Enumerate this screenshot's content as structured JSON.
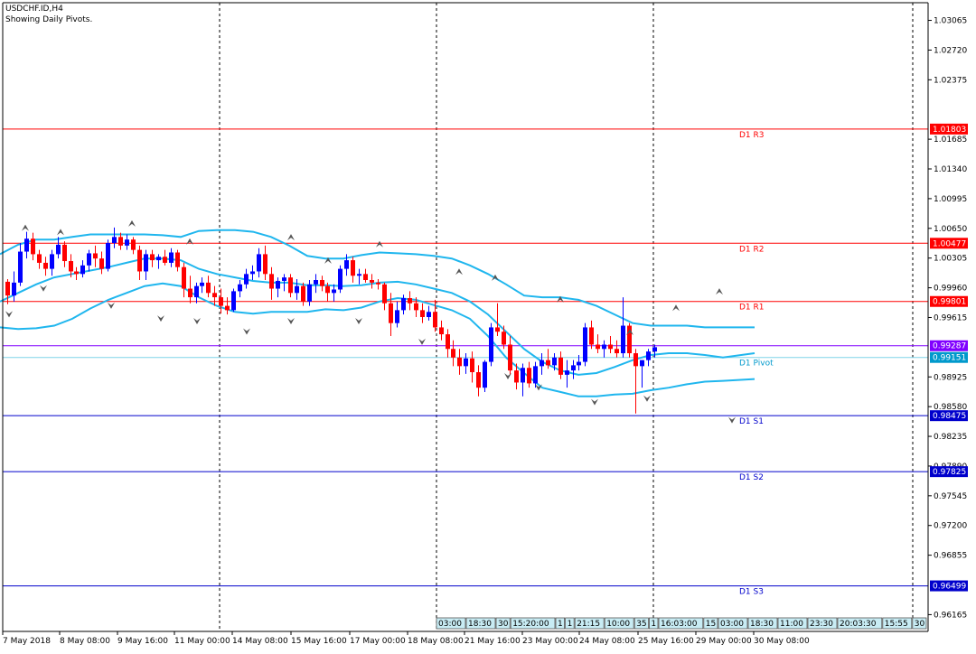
{
  "header": {
    "symbol": "USDCHF.ID,H4",
    "subtitle": "Showing Daily Pivots."
  },
  "colors": {
    "background": "#ffffff",
    "axis": "#000000",
    "separator": "#000000",
    "resistance": "#ff0000",
    "support": "#0000cc",
    "pivot": "#7fd4e8",
    "pivot_label": "#0099cc",
    "price_line": "#8000ff",
    "bollinger": "#1fb6ee",
    "bull_candle": "#0000ff",
    "bear_candle": "#ff0000",
    "tag_border": "#555555",
    "tag_fill": "#c8ecf4"
  },
  "chart_data": {
    "type": "candlestick",
    "symbol": "USDCHF.ID",
    "timeframe": "H4",
    "ylim": [
      0.9597,
      1.0327
    ],
    "y_ticks": [
      "1.03065",
      "1.02720",
      "1.02375",
      "1.01685",
      "1.01340",
      "1.00995",
      "1.00650",
      "1.00305",
      "0.99960",
      "0.99615",
      "0.98925",
      "0.98580",
      "0.98235",
      "0.97890",
      "0.97545",
      "0.97200",
      "0.96855",
      "0.96165"
    ],
    "x_ticks": [
      "7 May 2018",
      "8 May 08:00",
      "9 May 16:00",
      "11 May 00:00",
      "14 May 08:00",
      "15 May 16:00",
      "17 May 00:00",
      "18 May 08:00",
      "21 May 16:00",
      "23 May 00:00",
      "24 May 08:00",
      "25 May 16:00",
      "29 May 00:00",
      "30 May 08:00"
    ],
    "pivot_levels": [
      {
        "name": "D1 R3",
        "value": "1.01803",
        "kind": "resistance"
      },
      {
        "name": "D1 R2",
        "value": "1.00477",
        "kind": "resistance"
      },
      {
        "name": "D1 R1",
        "value": "0.99801",
        "kind": "resistance"
      },
      {
        "name": "D1 Pivot",
        "value": "0.99151",
        "kind": "pivot"
      },
      {
        "name": "D1 S1",
        "value": "0.98475",
        "kind": "support"
      },
      {
        "name": "D1 S2",
        "value": "0.97825",
        "kind": "support"
      },
      {
        "name": "D1 S3",
        "value": "0.96499",
        "kind": "support"
      }
    ],
    "current_price": "0.99287",
    "time_tags": [
      "03:00",
      "18:30",
      "30",
      "15:20:00",
      "1",
      "1",
      "21:15",
      "10:00",
      "35",
      "1",
      "16:03:00",
      "15",
      "03:00",
      "18:30",
      "11:00",
      "23:30",
      "20:03:30",
      "15:55",
      "30"
    ],
    "candles": [
      [
        1.0003,
        1.0006,
        0.9977,
        0.9987
      ],
      [
        0.9987,
        1.0015,
        0.998,
        1.0002
      ],
      [
        1.0002,
        1.0048,
        0.9998,
        1.0038
      ],
      [
        1.0038,
        1.0061,
        1.003,
        1.0053
      ],
      [
        1.0053,
        1.006,
        1.0028,
        1.0035
      ],
      [
        1.0035,
        1.004,
        1.0018,
        1.0025
      ],
      [
        1.0025,
        1.0032,
        1.001,
        1.0018
      ],
      [
        1.0018,
        1.004,
        1.001,
        1.0035
      ],
      [
        1.0035,
        1.0055,
        1.003,
        1.0046
      ],
      [
        1.0046,
        1.005,
        1.002,
        1.0027
      ],
      [
        1.0027,
        1.0035,
        1.0008,
        1.0015
      ],
      [
        1.0015,
        1.002,
        1.0005,
        1.0012
      ],
      [
        1.0012,
        1.0028,
        1.0008,
        1.0022
      ],
      [
        1.0022,
        1.004,
        1.0015,
        1.0036
      ],
      [
        1.0036,
        1.0045,
        1.002,
        1.003
      ],
      [
        1.003,
        1.0038,
        1.0012,
        1.0018
      ],
      [
        1.0018,
        1.0052,
        1.0015,
        1.0048
      ],
      [
        1.0048,
        1.0066,
        1.0042,
        1.0055
      ],
      [
        1.0055,
        1.006,
        1.004,
        1.0045
      ],
      [
        1.0045,
        1.0058,
        1.004,
        1.0052
      ],
      [
        1.0052,
        1.0055,
        1.0035,
        1.004
      ],
      [
        1.004,
        1.0045,
        1.0005,
        1.0015
      ],
      [
        1.0015,
        1.004,
        1.0005,
        1.0035
      ],
      [
        1.0035,
        1.004,
        1.002,
        1.0028
      ],
      [
        1.0028,
        1.0035,
        1.0018,
        1.0032
      ],
      [
        1.0032,
        1.004,
        1.0022,
        1.0025
      ],
      [
        1.0025,
        1.0042,
        1.002,
        1.0037
      ],
      [
        1.0037,
        1.004,
        1.0015,
        1.002
      ],
      [
        1.002,
        1.0025,
        0.9985,
        0.9995
      ],
      [
        0.9995,
        1.001,
        0.9978,
        0.9985
      ],
      [
        0.9985,
        1.0002,
        0.9978,
        0.9998
      ],
      [
        0.9998,
        1.0008,
        0.999,
        1.0002
      ],
      [
        1.0002,
        1.001,
        0.9985,
        0.999
      ],
      [
        0.999,
        0.9998,
        0.9975,
        0.9985
      ],
      [
        0.9985,
        0.9995,
        0.9966,
        0.9975
      ],
      [
        0.9975,
        0.9985,
        0.9965,
        0.997
      ],
      [
        0.997,
        0.9995,
        0.9968,
        0.9992
      ],
      [
        0.9992,
        1.0005,
        0.9985,
        1.0
      ],
      [
        1.0,
        1.0018,
        0.9995,
        1.0012
      ],
      [
        1.0012,
        1.0022,
        1.0005,
        1.0015
      ],
      [
        1.0015,
        1.0042,
        1.0008,
        1.0035
      ],
      [
        1.0035,
        1.0045,
        1.0005,
        1.0012
      ],
      [
        1.0012,
        1.002,
        0.9982,
        0.9995
      ],
      [
        0.9995,
        1.0008,
        0.9985,
        1.0004
      ],
      [
        1.0004,
        1.0012,
        0.9992,
        1.0008
      ],
      [
        1.0008,
        1.0012,
        0.9985,
        0.999
      ],
      [
        0.999,
        1.0006,
        0.9982,
        0.9998
      ],
      [
        0.9998,
        1.0002,
        0.9975,
        0.998
      ],
      [
        0.998,
        1.0005,
        0.9975,
        1.0
      ],
      [
        1.0,
        1.0012,
        0.999,
        1.0005
      ],
      [
        1.0005,
        1.001,
        0.9992,
        0.9998
      ],
      [
        0.9998,
        1.0002,
        0.998,
        0.999
      ],
      [
        0.999,
        1.0,
        0.998,
        0.9994
      ],
      [
        0.9994,
        1.0022,
        0.999,
        1.0018
      ],
      [
        1.0018,
        1.0035,
        1.001,
        1.0028
      ],
      [
        1.0028,
        1.0032,
        1.0002,
        1.001
      ],
      [
        1.001,
        1.0018,
        1.0,
        1.0012
      ],
      [
        1.0012,
        1.0018,
        1.0002,
        1.0005
      ],
      [
        1.0005,
        1.0012,
        0.9995,
        1.0002
      ],
      [
        1.0002,
        1.0006,
        0.9994,
        1.0
      ],
      [
        1.0,
        1.0002,
        0.997,
        0.9978
      ],
      [
        0.9978,
        0.999,
        0.994,
        0.9955
      ],
      [
        0.9955,
        0.998,
        0.995,
        0.997
      ],
      [
        0.997,
        0.9988,
        0.9965,
        0.9984
      ],
      [
        0.9984,
        0.9992,
        0.997,
        0.9978
      ],
      [
        0.9978,
        0.9985,
        0.9962,
        0.997
      ],
      [
        0.997,
        0.9978,
        0.9955,
        0.9962
      ],
      [
        0.9962,
        0.9975,
        0.9958,
        0.9968
      ],
      [
        0.9968,
        0.9982,
        0.9945,
        0.995
      ],
      [
        0.995,
        0.9958,
        0.9935,
        0.9942
      ],
      [
        0.9942,
        0.9948,
        0.9915,
        0.9925
      ],
      [
        0.9925,
        0.9935,
        0.9905,
        0.9915
      ],
      [
        0.9915,
        0.9925,
        0.9895,
        0.9905
      ],
      [
        0.9905,
        0.992,
        0.9896,
        0.9914
      ],
      [
        0.9914,
        0.9922,
        0.9886,
        0.9898
      ],
      [
        0.9898,
        0.9906,
        0.987,
        0.988
      ],
      [
        0.988,
        0.9912,
        0.9875,
        0.991
      ],
      [
        0.991,
        0.9955,
        0.9905,
        0.995
      ],
      [
        0.995,
        0.9978,
        0.994,
        0.9945
      ],
      [
        0.9945,
        0.9952,
        0.9925,
        0.993
      ],
      [
        0.993,
        0.994,
        0.9895,
        0.99
      ],
      [
        0.99,
        0.9908,
        0.9878,
        0.9886
      ],
      [
        0.9886,
        0.9908,
        0.987,
        0.9903
      ],
      [
        0.9903,
        0.991,
        0.988,
        0.9885
      ],
      [
        0.9885,
        0.991,
        0.988,
        0.9905
      ],
      [
        0.9905,
        0.992,
        0.9895,
        0.9912
      ],
      [
        0.9912,
        0.9925,
        0.9902,
        0.9906
      ],
      [
        0.9906,
        0.992,
        0.99,
        0.9915
      ],
      [
        0.9915,
        0.9922,
        0.989,
        0.9895
      ],
      [
        0.9895,
        0.9912,
        0.988,
        0.99
      ],
      [
        0.99,
        0.9912,
        0.989,
        0.9906
      ],
      [
        0.9906,
        0.9918,
        0.99,
        0.991
      ],
      [
        0.991,
        0.9955,
        0.9905,
        0.995
      ],
      [
        0.995,
        0.9958,
        0.9925,
        0.993
      ],
      [
        0.993,
        0.9942,
        0.992,
        0.9925
      ],
      [
        0.9925,
        0.9935,
        0.9915,
        0.993
      ],
      [
        0.993,
        0.994,
        0.992,
        0.9925
      ],
      [
        0.9925,
        0.9935,
        0.9915,
        0.992
      ],
      [
        0.992,
        0.9985,
        0.9915,
        0.9952
      ],
      [
        0.9952,
        0.9955,
        0.9915,
        0.992
      ],
      [
        0.992,
        0.9925,
        0.985,
        0.9905
      ],
      [
        0.9905,
        0.9912,
        0.988,
        0.9912
      ],
      [
        0.9912,
        0.9925,
        0.9905,
        0.9922
      ],
      [
        0.9922,
        0.993,
        0.9915,
        0.9927
      ]
    ],
    "bollinger": {
      "upper": [
        [
          0,
          1.0035
        ],
        [
          20,
          1.0046
        ],
        [
          40,
          1.0052
        ],
        [
          60,
          1.0052
        ],
        [
          80,
          1.0055
        ],
        [
          100,
          1.0058
        ],
        [
          120,
          1.0058
        ],
        [
          140,
          1.0058
        ],
        [
          160,
          1.0058
        ],
        [
          180,
          1.0057
        ],
        [
          200,
          1.0055
        ],
        [
          220,
          1.0062
        ],
        [
          240,
          1.0063
        ],
        [
          260,
          1.0063
        ],
        [
          280,
          1.0061
        ],
        [
          300,
          1.0055
        ],
        [
          320,
          1.0045
        ],
        [
          340,
          1.0033
        ],
        [
          360,
          1.003
        ],
        [
          380,
          1.003
        ],
        [
          400,
          1.0034
        ],
        [
          420,
          1.0037
        ],
        [
          440,
          1.0036
        ],
        [
          460,
          1.0035
        ],
        [
          480,
          1.0033
        ],
        [
          500,
          1.003
        ],
        [
          520,
          1.0022
        ],
        [
          540,
          1.0012
        ],
        [
          560,
          1.0
        ],
        [
          580,
          0.9987
        ],
        [
          600,
          0.9985
        ],
        [
          620,
          0.9985
        ],
        [
          640,
          0.9982
        ],
        [
          660,
          0.9975
        ],
        [
          680,
          0.9965
        ],
        [
          700,
          0.9955
        ],
        [
          720,
          0.9952
        ],
        [
          740,
          0.9952
        ],
        [
          760,
          0.9952
        ],
        [
          780,
          0.995
        ],
        [
          800,
          0.995
        ],
        [
          835,
          0.995
        ]
      ],
      "middle": [
        [
          0,
          0.998
        ],
        [
          20,
          0.999
        ],
        [
          40,
          1.0
        ],
        [
          60,
          1.0008
        ],
        [
          80,
          1.0012
        ],
        [
          100,
          1.0016
        ],
        [
          120,
          1.002
        ],
        [
          140,
          1.0025
        ],
        [
          160,
          1.003
        ],
        [
          180,
          1.003
        ],
        [
          200,
          1.0028
        ],
        [
          220,
          1.0018
        ],
        [
          240,
          1.0012
        ],
        [
          260,
          1.0008
        ],
        [
          280,
          1.0004
        ],
        [
          300,
          1.0002
        ],
        [
          320,
          1.0002
        ],
        [
          340,
          0.9999
        ],
        [
          360,
          0.9999
        ],
        [
          380,
          0.9998
        ],
        [
          400,
          0.9999
        ],
        [
          420,
          1.0002
        ],
        [
          440,
          1.0003
        ],
        [
          460,
          1.0
        ],
        [
          480,
          0.9995
        ],
        [
          500,
          0.999
        ],
        [
          520,
          0.998
        ],
        [
          540,
          0.9965
        ],
        [
          560,
          0.9945
        ],
        [
          580,
          0.9925
        ],
        [
          600,
          0.991
        ],
        [
          620,
          0.99
        ],
        [
          640,
          0.9895
        ],
        [
          660,
          0.9897
        ],
        [
          680,
          0.9904
        ],
        [
          700,
          0.9912
        ],
        [
          720,
          0.9918
        ],
        [
          740,
          0.992
        ],
        [
          760,
          0.992
        ],
        [
          780,
          0.9918
        ],
        [
          800,
          0.9915
        ],
        [
          835,
          0.992
        ]
      ],
      "lower": [
        [
          0,
          0.995
        ],
        [
          20,
          0.9948
        ],
        [
          40,
          0.9949
        ],
        [
          60,
          0.9952
        ],
        [
          80,
          0.996
        ],
        [
          100,
          0.9972
        ],
        [
          120,
          0.9982
        ],
        [
          140,
          0.999
        ],
        [
          160,
          0.9998
        ],
        [
          180,
          1.0001
        ],
        [
          200,
          0.9998
        ],
        [
          220,
          0.9985
        ],
        [
          240,
          0.9975
        ],
        [
          260,
          0.9968
        ],
        [
          280,
          0.9966
        ],
        [
          300,
          0.9968
        ],
        [
          320,
          0.9968
        ],
        [
          340,
          0.9968
        ],
        [
          360,
          0.9971
        ],
        [
          380,
          0.997
        ],
        [
          400,
          0.9973
        ],
        [
          420,
          0.998
        ],
        [
          440,
          0.9984
        ],
        [
          460,
          0.9982
        ],
        [
          480,
          0.9976
        ],
        [
          500,
          0.997
        ],
        [
          520,
          0.996
        ],
        [
          540,
          0.994
        ],
        [
          560,
          0.9915
        ],
        [
          580,
          0.9897
        ],
        [
          600,
          0.988
        ],
        [
          620,
          0.9875
        ],
        [
          640,
          0.987
        ],
        [
          660,
          0.987
        ],
        [
          680,
          0.9872
        ],
        [
          700,
          0.9873
        ],
        [
          720,
          0.9877
        ],
        [
          740,
          0.988
        ],
        [
          760,
          0.9884
        ],
        [
          780,
          0.9887
        ],
        [
          800,
          0.9888
        ],
        [
          835,
          0.989
        ]
      ]
    },
    "fractals": [
      {
        "x": 28,
        "price": 1.0061,
        "dir": "up"
      },
      {
        "x": 67,
        "price": 1.0056,
        "dir": "up"
      },
      {
        "x": 146,
        "price": 1.0066,
        "dir": "up"
      },
      {
        "x": 210,
        "price": 1.0045,
        "dir": "up"
      },
      {
        "x": 322,
        "price": 1.005,
        "dir": "up"
      },
      {
        "x": 363,
        "price": 1.0023,
        "dir": "up"
      },
      {
        "x": 420,
        "price": 1.0042,
        "dir": "up"
      },
      {
        "x": 508,
        "price": 1.001,
        "dir": "up"
      },
      {
        "x": 548,
        "price": 1.0003,
        "dir": "up"
      },
      {
        "x": 620,
        "price": 0.9978,
        "dir": "up"
      },
      {
        "x": 697,
        "price": 0.994,
        "dir": "up"
      },
      {
        "x": 748,
        "price": 0.9968,
        "dir": "up"
      },
      {
        "x": 796,
        "price": 0.9987,
        "dir": "up"
      },
      {
        "x": 10,
        "price": 0.997,
        "dir": "down"
      },
      {
        "x": 48,
        "price": 1.0,
        "dir": "down"
      },
      {
        "x": 123,
        "price": 0.998,
        "dir": "down"
      },
      {
        "x": 178,
        "price": 0.9965,
        "dir": "down"
      },
      {
        "x": 218,
        "price": 0.9962,
        "dir": "down"
      },
      {
        "x": 273,
        "price": 0.995,
        "dir": "down"
      },
      {
        "x": 322,
        "price": 0.9962,
        "dir": "down"
      },
      {
        "x": 397,
        "price": 0.9962,
        "dir": "down"
      },
      {
        "x": 467,
        "price": 0.9938,
        "dir": "down"
      },
      {
        "x": 562,
        "price": 0.9898,
        "dir": "down"
      },
      {
        "x": 596,
        "price": 0.9885,
        "dir": "down"
      },
      {
        "x": 658,
        "price": 0.9868,
        "dir": "down"
      },
      {
        "x": 716,
        "price": 0.9872,
        "dir": "down"
      },
      {
        "x": 810,
        "price": 0.9847,
        "dir": "down"
      }
    ]
  }
}
